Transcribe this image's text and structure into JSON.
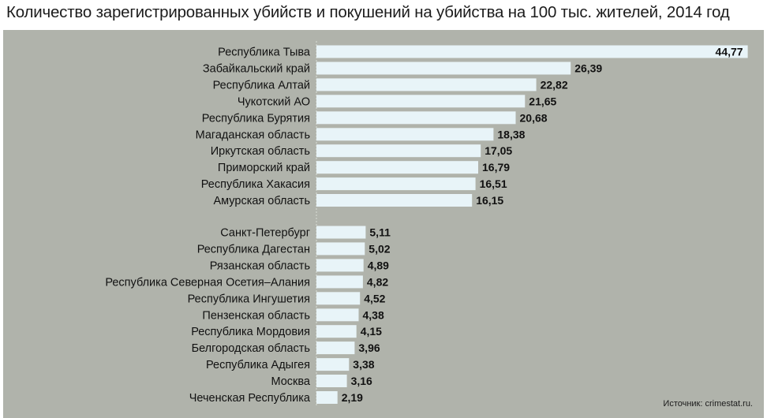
{
  "chart_data": {
    "type": "bar",
    "orientation": "horizontal",
    "title": "Количество зарегистрированных убийств и покушений на убийства на 100 тыс. жителей, 2014 год",
    "source": "Источник: crimestat.ru.",
    "bar_color": "#e8f4f8",
    "background_color": "#b0b3ab",
    "groups": [
      {
        "categories": [
          "Республика Тыва",
          "Забайкальский край",
          "Республика Алтай",
          "Чукотский АО",
          "Республика Бурятия",
          "Магаданская область",
          "Иркутская область",
          "Приморский край",
          "Республика Хакасия",
          "Амурская область"
        ],
        "values": [
          44.77,
          26.39,
          22.82,
          21.65,
          20.68,
          18.38,
          17.05,
          16.79,
          16.51,
          16.15
        ],
        "value_labels": [
          "44,77",
          "26,39",
          "22,82",
          "21,65",
          "20,68",
          "18,38",
          "17,05",
          "16,79",
          "16,51",
          "16,15"
        ]
      },
      {
        "categories": [
          "Санкт-Петербург",
          "Республика Дагестан",
          "Рязанская область",
          "Республика Северная Осетия–Алания",
          "Республика Ингушетия",
          "Пензенская область",
          "Республика Мордовия",
          "Белгородская область",
          "Республика Адыгея",
          "Москва",
          "Чеченская Республика"
        ],
        "values": [
          5.11,
          5.02,
          4.89,
          4.82,
          4.52,
          4.38,
          4.15,
          3.96,
          3.38,
          3.16,
          2.19
        ],
        "value_labels": [
          "5,11",
          "5,02",
          "4,89",
          "4,82",
          "4,52",
          "4,38",
          "4,15",
          "3,96",
          "3,38",
          "3,16",
          "2,19"
        ]
      }
    ]
  }
}
